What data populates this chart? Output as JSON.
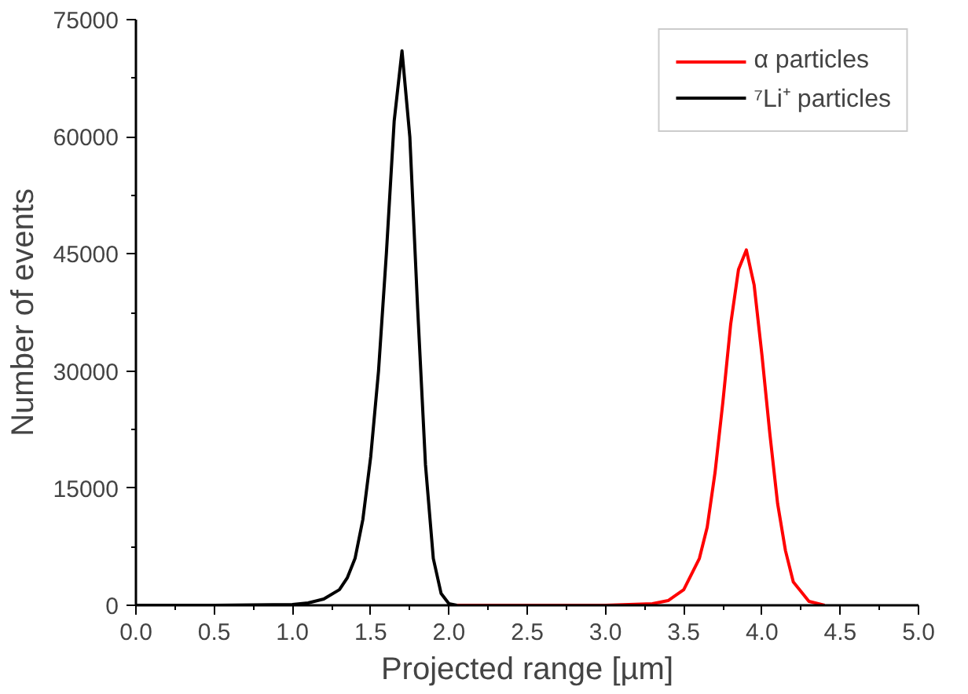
{
  "chart_data": {
    "type": "line",
    "xlabel": "Projected range [µm]",
    "ylabel": "Number of events",
    "xlim": [
      0,
      5
    ],
    "ylim": [
      0,
      75000
    ],
    "xticks": [
      {
        "value": 0,
        "label": "0.0"
      },
      {
        "value": 0.5,
        "label": "0.5"
      },
      {
        "value": 1,
        "label": "1.0"
      },
      {
        "value": 1.5,
        "label": "1.5"
      },
      {
        "value": 2,
        "label": "2.0"
      },
      {
        "value": 2.5,
        "label": "2.5"
      },
      {
        "value": 3,
        "label": "3.0"
      },
      {
        "value": 3.5,
        "label": "3.5"
      },
      {
        "value": 4,
        "label": "4.0"
      },
      {
        "value": 4.5,
        "label": "4.5"
      },
      {
        "value": 5,
        "label": "5.0"
      }
    ],
    "yticks": [
      0,
      15000,
      30000,
      45000,
      60000,
      75000
    ],
    "grid": false,
    "legend": "top right",
    "marker": "none",
    "line_style": "solid",
    "series": [
      {
        "name": "α particles",
        "color": "#ff0000",
        "x": [
          2.0,
          3.0,
          3.3,
          3.4,
          3.5,
          3.6,
          3.65,
          3.7,
          3.75,
          3.8,
          3.85,
          3.9,
          3.95,
          4.0,
          4.05,
          4.1,
          4.15,
          4.2,
          4.3,
          4.4
        ],
        "values": [
          0,
          0,
          200,
          600,
          2000,
          6000,
          10000,
          17000,
          26000,
          36000,
          43000,
          45500,
          41000,
          32000,
          22000,
          13000,
          7000,
          3000,
          500,
          0
        ]
      },
      {
        "name": "⁷Li⁺ particles",
        "color": "#000000",
        "x": [
          0.0,
          0.5,
          1.0,
          1.1,
          1.2,
          1.3,
          1.35,
          1.4,
          1.45,
          1.5,
          1.55,
          1.6,
          1.65,
          1.7,
          1.75,
          1.8,
          1.85,
          1.9,
          1.95,
          2.0,
          2.05
        ],
        "values": [
          0,
          0,
          100,
          300,
          800,
          2000,
          3500,
          6000,
          11000,
          19000,
          30000,
          45000,
          62000,
          71000,
          60000,
          38000,
          18000,
          6000,
          1500,
          200,
          0
        ]
      }
    ]
  }
}
